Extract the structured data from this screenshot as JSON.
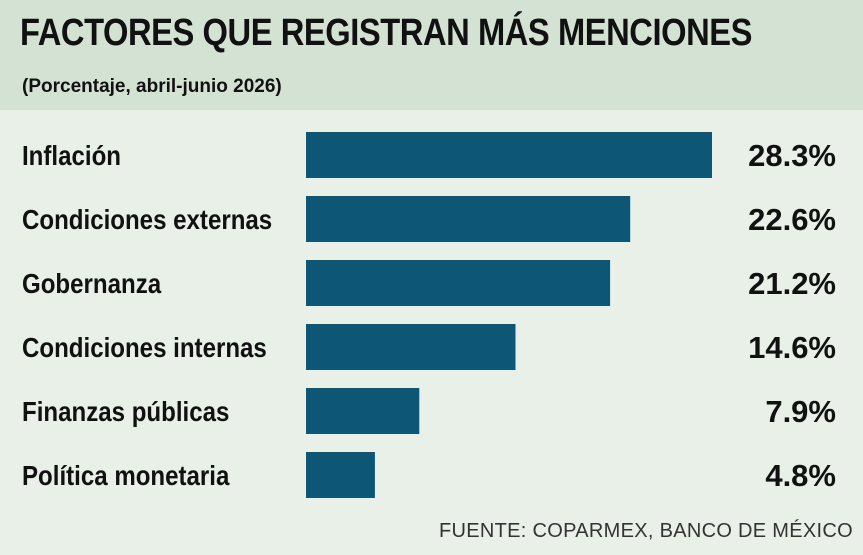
{
  "header": {
    "title": "FACTORES QUE REGISTRAN MÁS MENCIONES",
    "subtitle": "(Porcentaje, abril-junio 2026)"
  },
  "footer": {
    "source": "FUENTE: COPARMEX, BANCO DE MÉXICO"
  },
  "colors": {
    "bar": "#0d5676",
    "background": "#e8f0e8",
    "header_background": "#d4e2d4"
  },
  "chart_data": {
    "type": "bar",
    "orientation": "horizontal",
    "categories": [
      "Inflación",
      "Condiciones externas",
      "Gobernanza",
      "Condiciones internas",
      "Finanzas públicas",
      "Política monetaria"
    ],
    "values": [
      28.3,
      22.6,
      21.2,
      14.6,
      7.9,
      4.8
    ],
    "value_labels": [
      "28.3%",
      "22.6%",
      "21.2%",
      "14.6%",
      "7.9%",
      "4.8%"
    ],
    "unit": "%",
    "grid": false,
    "legend": "none"
  }
}
